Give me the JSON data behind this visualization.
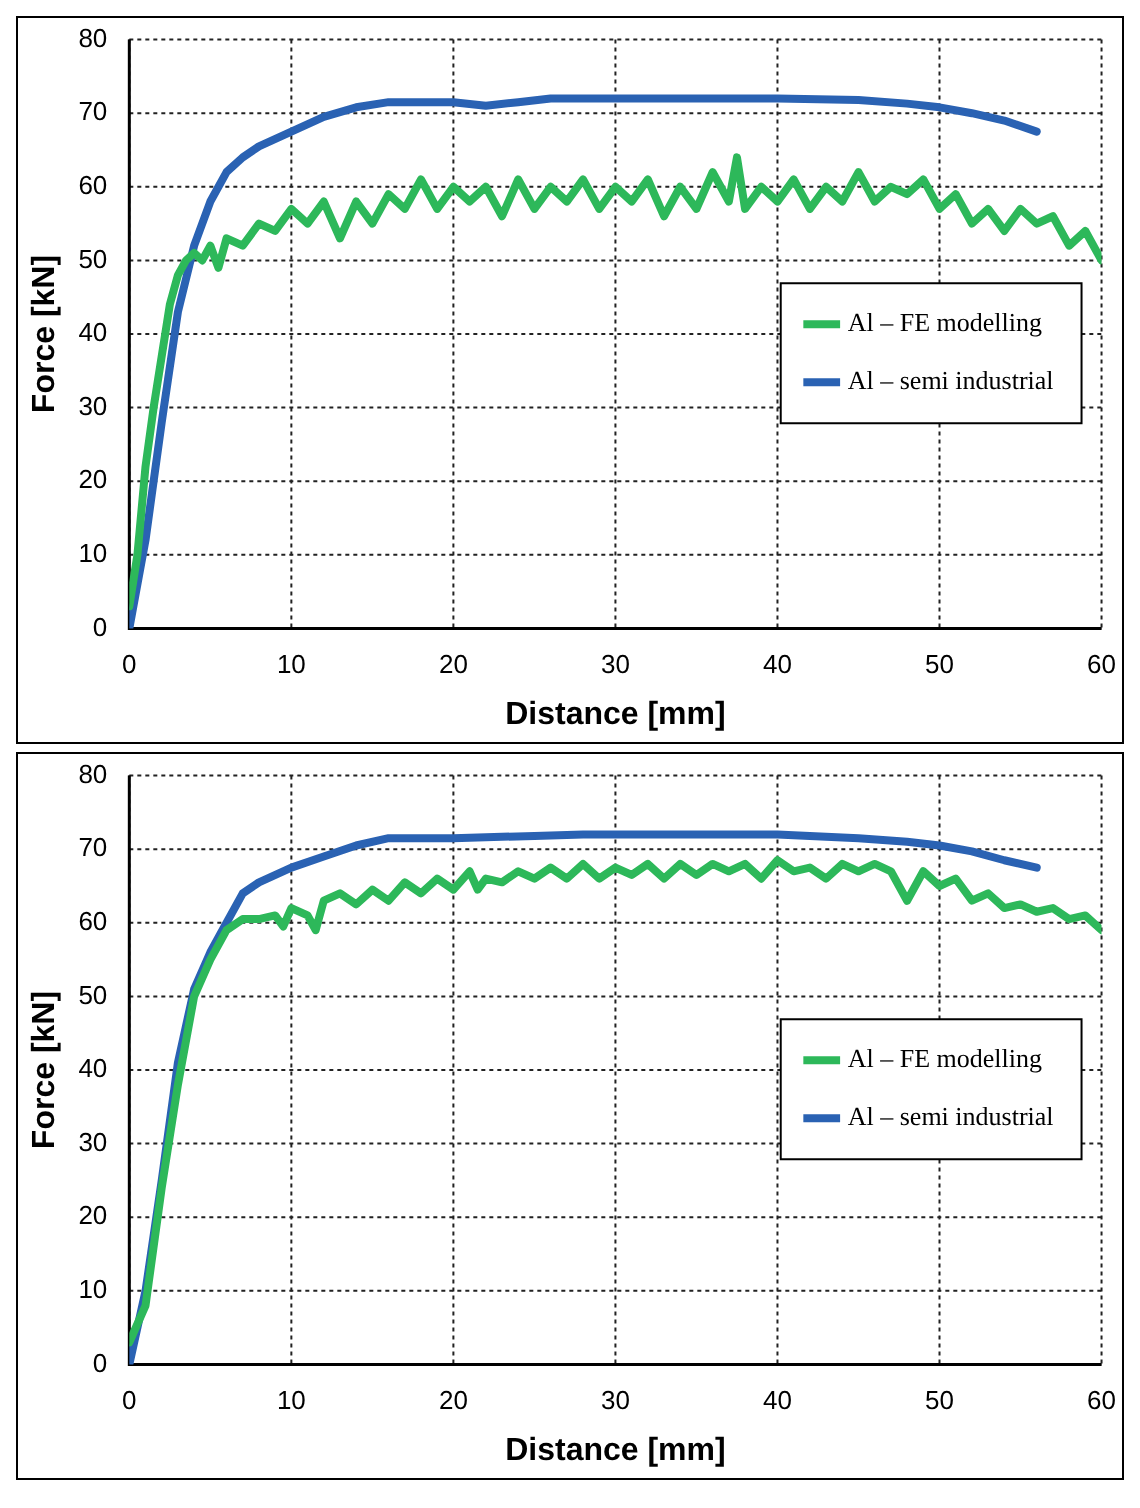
{
  "chart_data": [
    {
      "type": "line",
      "xlabel": "Distance [mm]",
      "ylabel": "Force [kN]",
      "xlim": [
        0,
        60
      ],
      "xticks": [
        0,
        10,
        20,
        30,
        40,
        50,
        60
      ],
      "ylim": [
        0,
        80
      ],
      "yticks": [
        0,
        10,
        20,
        30,
        40,
        50,
        60,
        70,
        80
      ],
      "grid": true,
      "legend": "right",
      "marker": "none",
      "line_style": "solid",
      "series": [
        {
          "name": "Al – FE modelling",
          "color": "#2db85a",
          "x": [
            0,
            0.5,
            1,
            1.5,
            2,
            2.5,
            3,
            3.5,
            4,
            4.5,
            5,
            5.5,
            6,
            7,
            8,
            9,
            10,
            11,
            12,
            13,
            14,
            15,
            16,
            17,
            18,
            19,
            20,
            21,
            22,
            23,
            24,
            25,
            26,
            27,
            28,
            29,
            30,
            31,
            32,
            33,
            34,
            35,
            36,
            37,
            37.5,
            38,
            39,
            40,
            41,
            42,
            43,
            44,
            45,
            46,
            47,
            48,
            49,
            50,
            51,
            52,
            53,
            54,
            55,
            56,
            57,
            58,
            59,
            60
          ],
          "values": [
            3,
            10,
            22,
            30,
            37,
            44,
            48,
            50,
            51,
            50,
            52,
            49,
            53,
            52,
            55,
            54,
            57,
            55,
            58,
            53,
            58,
            55,
            59,
            57,
            61,
            57,
            60,
            58,
            60,
            56,
            61,
            57,
            60,
            58,
            61,
            57,
            60,
            58,
            61,
            56,
            60,
            57,
            62,
            58,
            64,
            57,
            60,
            58,
            61,
            57,
            60,
            58,
            62,
            58,
            60,
            59,
            61,
            57,
            59,
            55,
            57,
            54,
            57,
            55,
            56,
            52,
            54,
            50
          ]
        },
        {
          "name": "Al – semi industrial",
          "color": "#2a62b3",
          "x": [
            0,
            1,
            2,
            3,
            4,
            5,
            6,
            7,
            8,
            10,
            12,
            14,
            16,
            18,
            20,
            22,
            24,
            26,
            28,
            30,
            35,
            40,
            45,
            48,
            50,
            52,
            54,
            56
          ],
          "values": [
            0,
            12,
            28,
            43,
            52,
            58,
            62,
            64,
            65.5,
            67.5,
            69.5,
            70.8,
            71.5,
            71.5,
            71.5,
            71,
            71.5,
            72,
            72,
            72,
            72,
            72,
            71.8,
            71.3,
            70.8,
            70,
            69,
            67.5
          ]
        }
      ]
    },
    {
      "type": "line",
      "xlabel": "Distance [mm]",
      "ylabel": "Force [kN]",
      "xlim": [
        0,
        60
      ],
      "xticks": [
        0,
        10,
        20,
        30,
        40,
        50,
        60
      ],
      "ylim": [
        0,
        80
      ],
      "yticks": [
        0,
        10,
        20,
        30,
        40,
        50,
        60,
        70,
        80
      ],
      "grid": true,
      "legend": "right",
      "marker": "none",
      "line_style": "solid",
      "series": [
        {
          "name": "Al – FE modelling",
          "color": "#2db85a",
          "x": [
            0,
            1,
            2,
            3,
            4,
            5,
            6,
            7,
            8,
            9,
            9.5,
            10,
            11,
            11.5,
            12,
            13,
            14,
            15,
            16,
            17,
            18,
            19,
            20,
            21,
            21.5,
            22,
            23,
            24,
            25,
            26,
            27,
            28,
            29,
            30,
            31,
            32,
            33,
            34,
            35,
            36,
            37,
            38,
            39,
            40,
            41,
            42,
            43,
            44,
            45,
            46,
            47,
            48,
            49,
            50,
            51,
            52,
            53,
            54,
            55,
            56,
            57,
            58,
            59,
            60
          ],
          "values": [
            3,
            8,
            24,
            38,
            50,
            55,
            59,
            60.5,
            60.5,
            61,
            59.5,
            62,
            61,
            59,
            63,
            64,
            62.5,
            64.5,
            63,
            65.5,
            64,
            66,
            64.5,
            67,
            64.5,
            66,
            65.5,
            67,
            66,
            67.5,
            66,
            68,
            66,
            67.5,
            66.5,
            68,
            66,
            68,
            66.5,
            68,
            67,
            68,
            66,
            68.5,
            67,
            67.5,
            66,
            68,
            67,
            68,
            67,
            63,
            67,
            65,
            66,
            63,
            64,
            62,
            62.5,
            61.5,
            62,
            60.5,
            61,
            59
          ]
        },
        {
          "name": "Al – semi industrial",
          "color": "#2a62b3",
          "x": [
            0,
            1,
            2,
            3,
            4,
            5,
            6,
            7,
            8,
            10,
            12,
            14,
            16,
            20,
            25,
            28,
            30,
            35,
            40,
            45,
            48,
            50,
            52,
            54,
            56
          ],
          "values": [
            0,
            10,
            25,
            41,
            51,
            56,
            60,
            64,
            65.5,
            67.5,
            69,
            70.5,
            71.5,
            71.5,
            71.8,
            72,
            72,
            72,
            72,
            71.5,
            71,
            70.5,
            69.7,
            68.5,
            67.5
          ]
        }
      ]
    }
  ]
}
